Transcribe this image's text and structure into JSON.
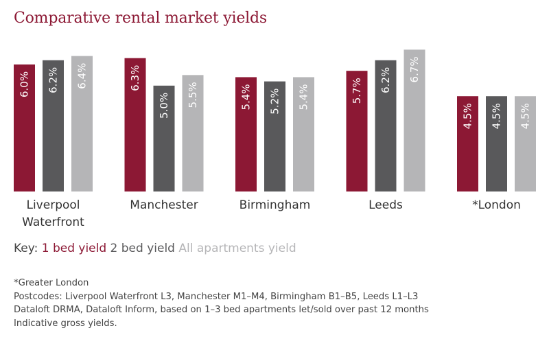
{
  "title": "Comparative rental market yields",
  "chart_data": {
    "type": "bar",
    "title": "Comparative rental market yields",
    "categories": [
      [
        "Liverpool",
        "Waterfront"
      ],
      [
        "Manchester"
      ],
      [
        "Birmingham"
      ],
      [
        "Leeds"
      ],
      [
        "*London"
      ]
    ],
    "series": [
      {
        "name": "1 bed yield",
        "color": "#8c1834",
        "values": [
          6.0,
          6.3,
          5.4,
          5.7,
          4.5
        ],
        "labels": [
          "6.0%",
          "6.3%",
          "5.4%",
          "5.7%",
          "4.5%"
        ]
      },
      {
        "name": "2 bed yield",
        "color": "#59595b",
        "values": [
          6.2,
          5.0,
          5.2,
          6.2,
          4.5
        ],
        "labels": [
          "6.2%",
          "5.0%",
          "5.2%",
          "6.2%",
          "4.5%"
        ]
      },
      {
        "name": "All apartments yield",
        "color": "#b5b5b7",
        "values": [
          6.4,
          5.5,
          5.4,
          6.7,
          4.5
        ],
        "labels": [
          "6.4%",
          "5.5%",
          "5.4%",
          "6.7%",
          "4.5%"
        ]
      }
    ],
    "ylim": [
      0,
      7.1
    ],
    "grid": false,
    "legend_placement": "bottom-left"
  },
  "key": {
    "label": "Key:",
    "items": [
      "1 bed yield",
      "2 bed yield",
      "All apartments yield"
    ]
  },
  "notes": [
    "*Greater London",
    "Postcodes: Liverpool Waterfront L3, Manchester M1–M4, Birmingham B1–B5, Leeds L1–L3",
    "Dataloft DRMA, Dataloft Inform, based on 1–3 bed apartments let/sold over past 12 months",
    "Indicative gross yields."
  ]
}
